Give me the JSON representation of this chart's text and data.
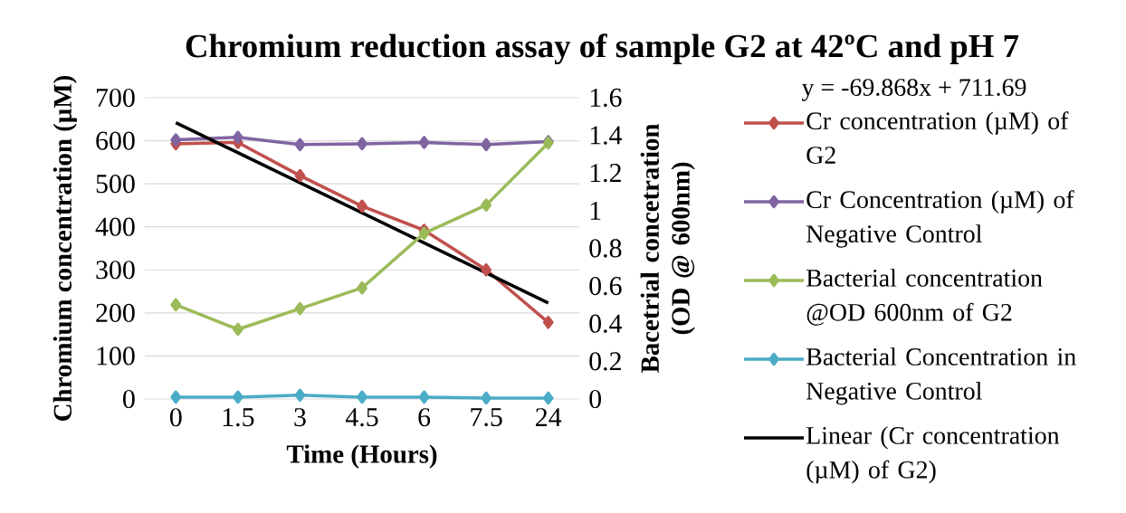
{
  "chart_data": {
    "type": "line",
    "title": "Chromium reduction assay of sample G2 at 42ºC and pH 7",
    "xlabel": "Time (Hours)",
    "ylabel": "Chromium concentration (µM)",
    "y2label": "Bacetrial concetration (OD @ 600nm)",
    "categories": [
      "0",
      "1.5",
      "3",
      "4.5",
      "6",
      "7.5",
      "24"
    ],
    "series": [
      {
        "name": "Cr concentration (µM) of G2",
        "color": "#c0504d",
        "values": [
          593,
          596,
          519,
          448,
          392,
          300,
          178
        ]
      },
      {
        "name": "Cr Concentration (µM) of Negative Control",
        "color": "#8064a2",
        "values": [
          602,
          608,
          591,
          593,
          596,
          591,
          598
        ]
      },
      {
        "name": "Bacterial concentration @OD 600nm of G2",
        "color": "#9bbb59",
        "axis": "y2",
        "values": [
          0.5,
          0.37,
          0.48,
          0.59,
          0.88,
          1.03,
          1.36
        ]
      },
      {
        "name": "Bacterial Concentration in Negative Control",
        "color": "#4bacc6",
        "axis": "y2",
        "values": [
          0.01,
          0.01,
          0.02,
          0.01,
          0.01,
          0.005,
          0.005
        ]
      },
      {
        "name": "Linear (Cr concentration (µM) of G2)",
        "color": "#000000",
        "marker": "none",
        "x": [
          "0",
          "24"
        ],
        "values": [
          642,
          223
        ]
      }
    ],
    "ylim": [
      0,
      700
    ],
    "yticks": [
      0,
      100,
      200,
      300,
      400,
      500,
      600,
      700
    ],
    "y2lim": [
      0,
      1.6
    ],
    "y2ticks": [
      0,
      0.2,
      0.4,
      0.6,
      0.8,
      1,
      1.2,
      1.4,
      1.6
    ],
    "grid": "y",
    "legend": "right",
    "marker": "diamond",
    "line_style": "solid",
    "annotations": [
      "y = -69.868x + 711.69"
    ]
  }
}
